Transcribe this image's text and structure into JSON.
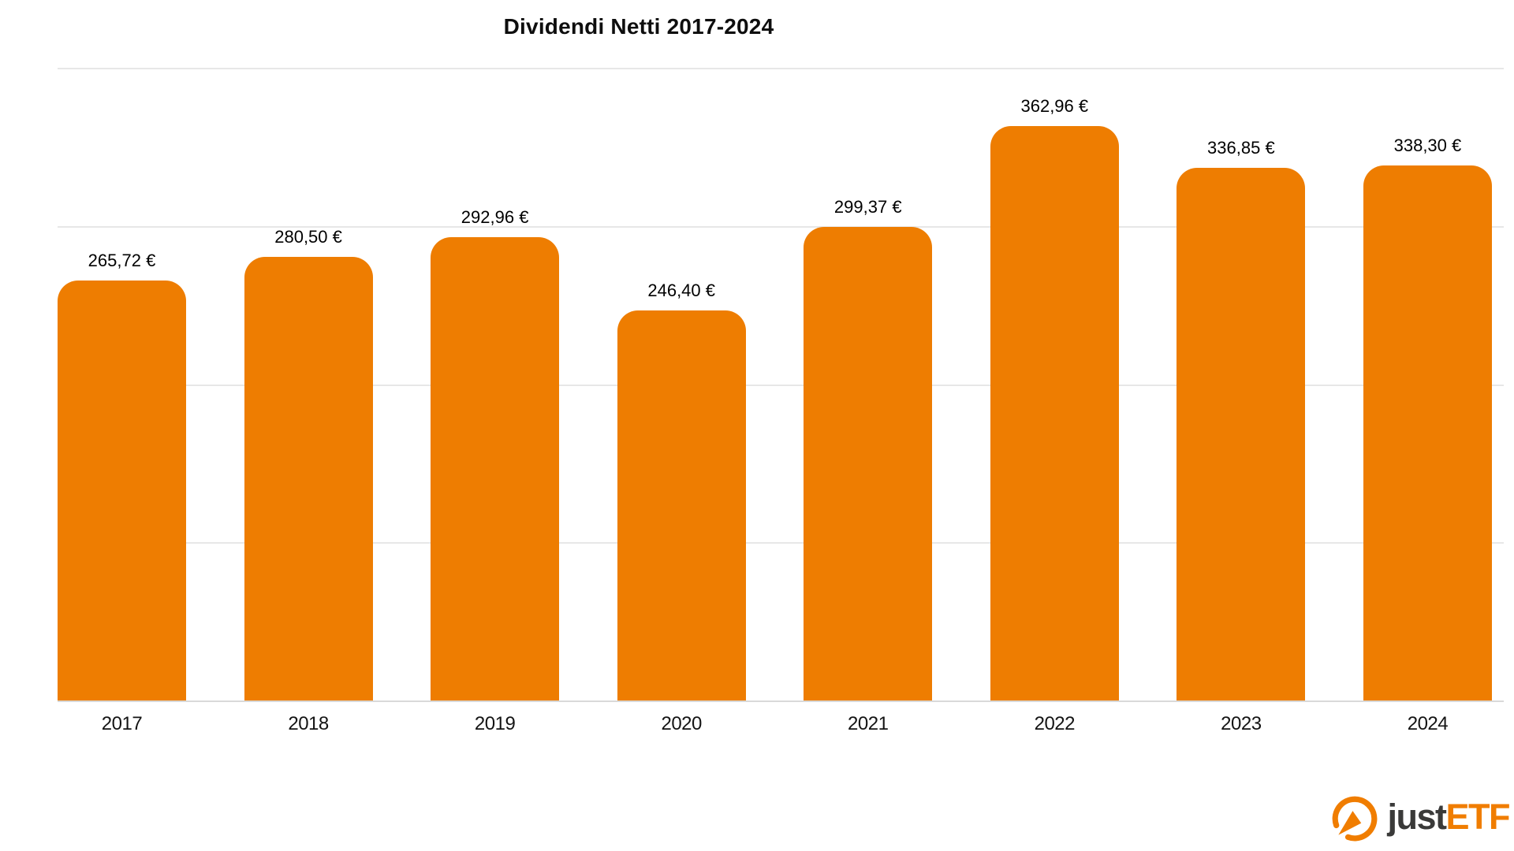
{
  "title": "Dividendi Netti 2017-2024",
  "chart_data": {
    "type": "bar",
    "title": "Dividendi Netti 2017-2024",
    "categories": [
      "2017",
      "2018",
      "2019",
      "2020",
      "2021",
      "2022",
      "2023",
      "2024"
    ],
    "values": [
      265.72,
      280.5,
      292.96,
      246.4,
      299.37,
      362.96,
      336.85,
      338.3
    ],
    "value_labels": [
      "265,72 €",
      "280,50 €",
      "292,96 €",
      "246,40 €",
      "299,37 €",
      "362,96 €",
      "336,85 €",
      "338,30 €"
    ],
    "xlabel": "",
    "ylabel": "",
    "ylim": [
      0,
      400
    ],
    "gridline_values": [
      100,
      200,
      300,
      400
    ],
    "grid": true,
    "legend": "none",
    "bar_color": "#ee7d01"
  },
  "branding": {
    "logo_just": "just",
    "logo_etf": "ETF",
    "icon": "gauge-icon",
    "orange": "#f07d00",
    "dark": "#3a3a39"
  },
  "colors": {
    "background": "#ffffff",
    "bar": "#ee7d01",
    "gridline": "#e7e7e7",
    "baseline": "#d9d9d9",
    "text": "#000000"
  }
}
